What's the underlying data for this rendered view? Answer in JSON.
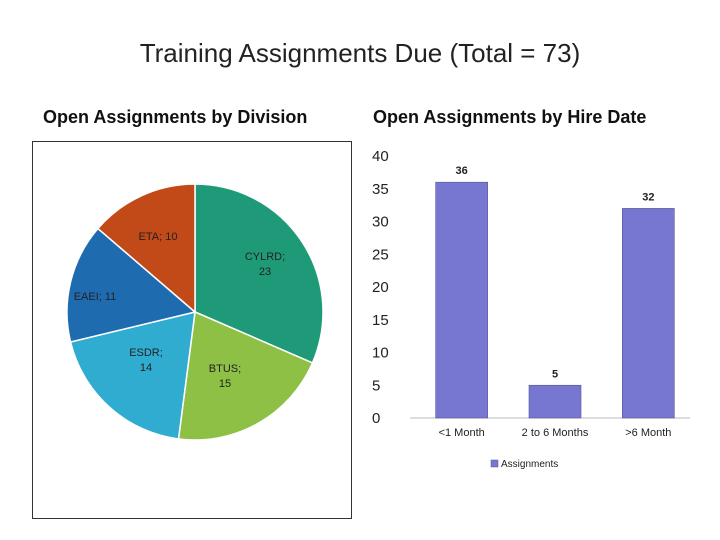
{
  "title": "Training Assignments Due (Total = 73)",
  "chart_data": [
    {
      "type": "pie",
      "title": "Open Assignments by Division",
      "slices": [
        {
          "label": "CYLRD; 23",
          "value": 23,
          "color": "#1f9a78"
        },
        {
          "label": "BTUS; 15",
          "value": 15,
          "color": "#8dc045"
        },
        {
          "label": "ESDR; 14",
          "value": 14,
          "color": "#31acd1"
        },
        {
          "label": "EAEI; 11",
          "value": 11,
          "color": "#1f6bb0"
        },
        {
          "label": "ETA; 10",
          "value": 10,
          "color": "#c14a18"
        }
      ]
    },
    {
      "type": "bar",
      "title": "Open Assignments by Hire Date",
      "categories": [
        "<1 Month",
        "2 to 6 Months",
        ">6 Month"
      ],
      "series": [
        {
          "name": "Assignments",
          "values": [
            36,
            5,
            32
          ],
          "color": "#7777d1"
        }
      ],
      "ylim": [
        0,
        40
      ],
      "yticks": [
        0,
        5,
        10,
        15,
        20,
        25,
        30,
        35,
        40
      ],
      "grid": false,
      "legend": "bottom"
    }
  ]
}
